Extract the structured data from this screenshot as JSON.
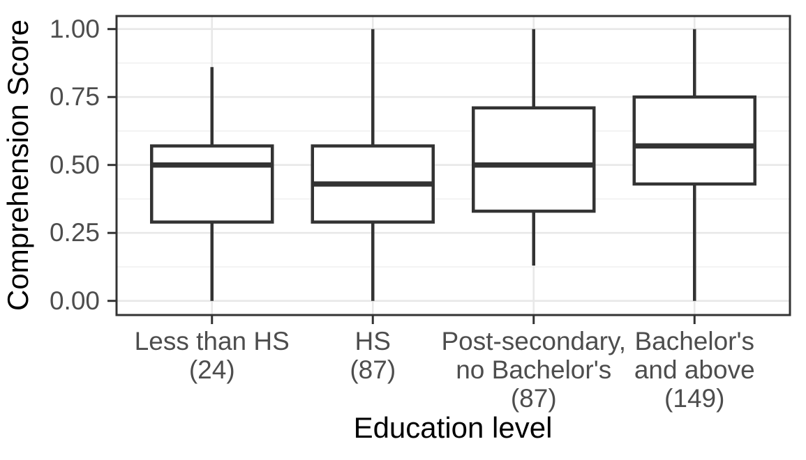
{
  "chart_data": {
    "type": "boxplot",
    "title": "",
    "xlabel": "Education level",
    "ylabel": "Comprehension Score",
    "ylim": [
      0,
      1
    ],
    "yticks": [
      0.0,
      0.25,
      0.5,
      0.75,
      1.0
    ],
    "ytick_labels": [
      "0.00",
      "0.25",
      "0.50",
      "0.75",
      "1.00"
    ],
    "yticks_minor": [
      0.125,
      0.375,
      0.625,
      0.875
    ],
    "grid": "major and minor horizontal gridlines, major vertical gridline at each category center",
    "legend": "none",
    "outliers": "none shown",
    "whisker_caps": false,
    "categories": [
      {
        "label": "Less than HS (24)",
        "label_lines": [
          "Less than HS",
          "(24)"
        ],
        "n": 24,
        "whisker_low": 0.0,
        "q1": 0.29,
        "median": 0.5,
        "q3": 0.57,
        "whisker_high": 0.86
      },
      {
        "label": "HS (87)",
        "label_lines": [
          "HS",
          "(87)"
        ],
        "n": 87,
        "whisker_low": 0.0,
        "q1": 0.29,
        "median": 0.43,
        "q3": 0.57,
        "whisker_high": 1.0
      },
      {
        "label": "Post-secondary, no Bachelor's (87)",
        "label_lines": [
          "Post-secondary,",
          "no Bachelor's",
          "(87)"
        ],
        "n": 87,
        "whisker_low": 0.13,
        "q1": 0.33,
        "median": 0.5,
        "q3": 0.71,
        "whisker_high": 1.0
      },
      {
        "label": "Bachelor's and above (149)",
        "label_lines": [
          "Bachelor's",
          "and above",
          "(149)"
        ],
        "n": 149,
        "whisker_low": 0.0,
        "q1": 0.43,
        "median": 0.57,
        "q3": 0.75,
        "whisker_high": 1.0
      }
    ],
    "colors": {
      "box_border": "#333333",
      "median_line": "#333333",
      "whisker": "#333333",
      "panel_border": "#333333",
      "axis_tick": "#333333",
      "grid_major": "#e8e8e8",
      "grid_minor": "#f0f0f0",
      "tick_label_text": "#4d4d4d",
      "axis_title_text": "#000000",
      "box_fill": "#ffffff",
      "background": "#ffffff"
    }
  }
}
